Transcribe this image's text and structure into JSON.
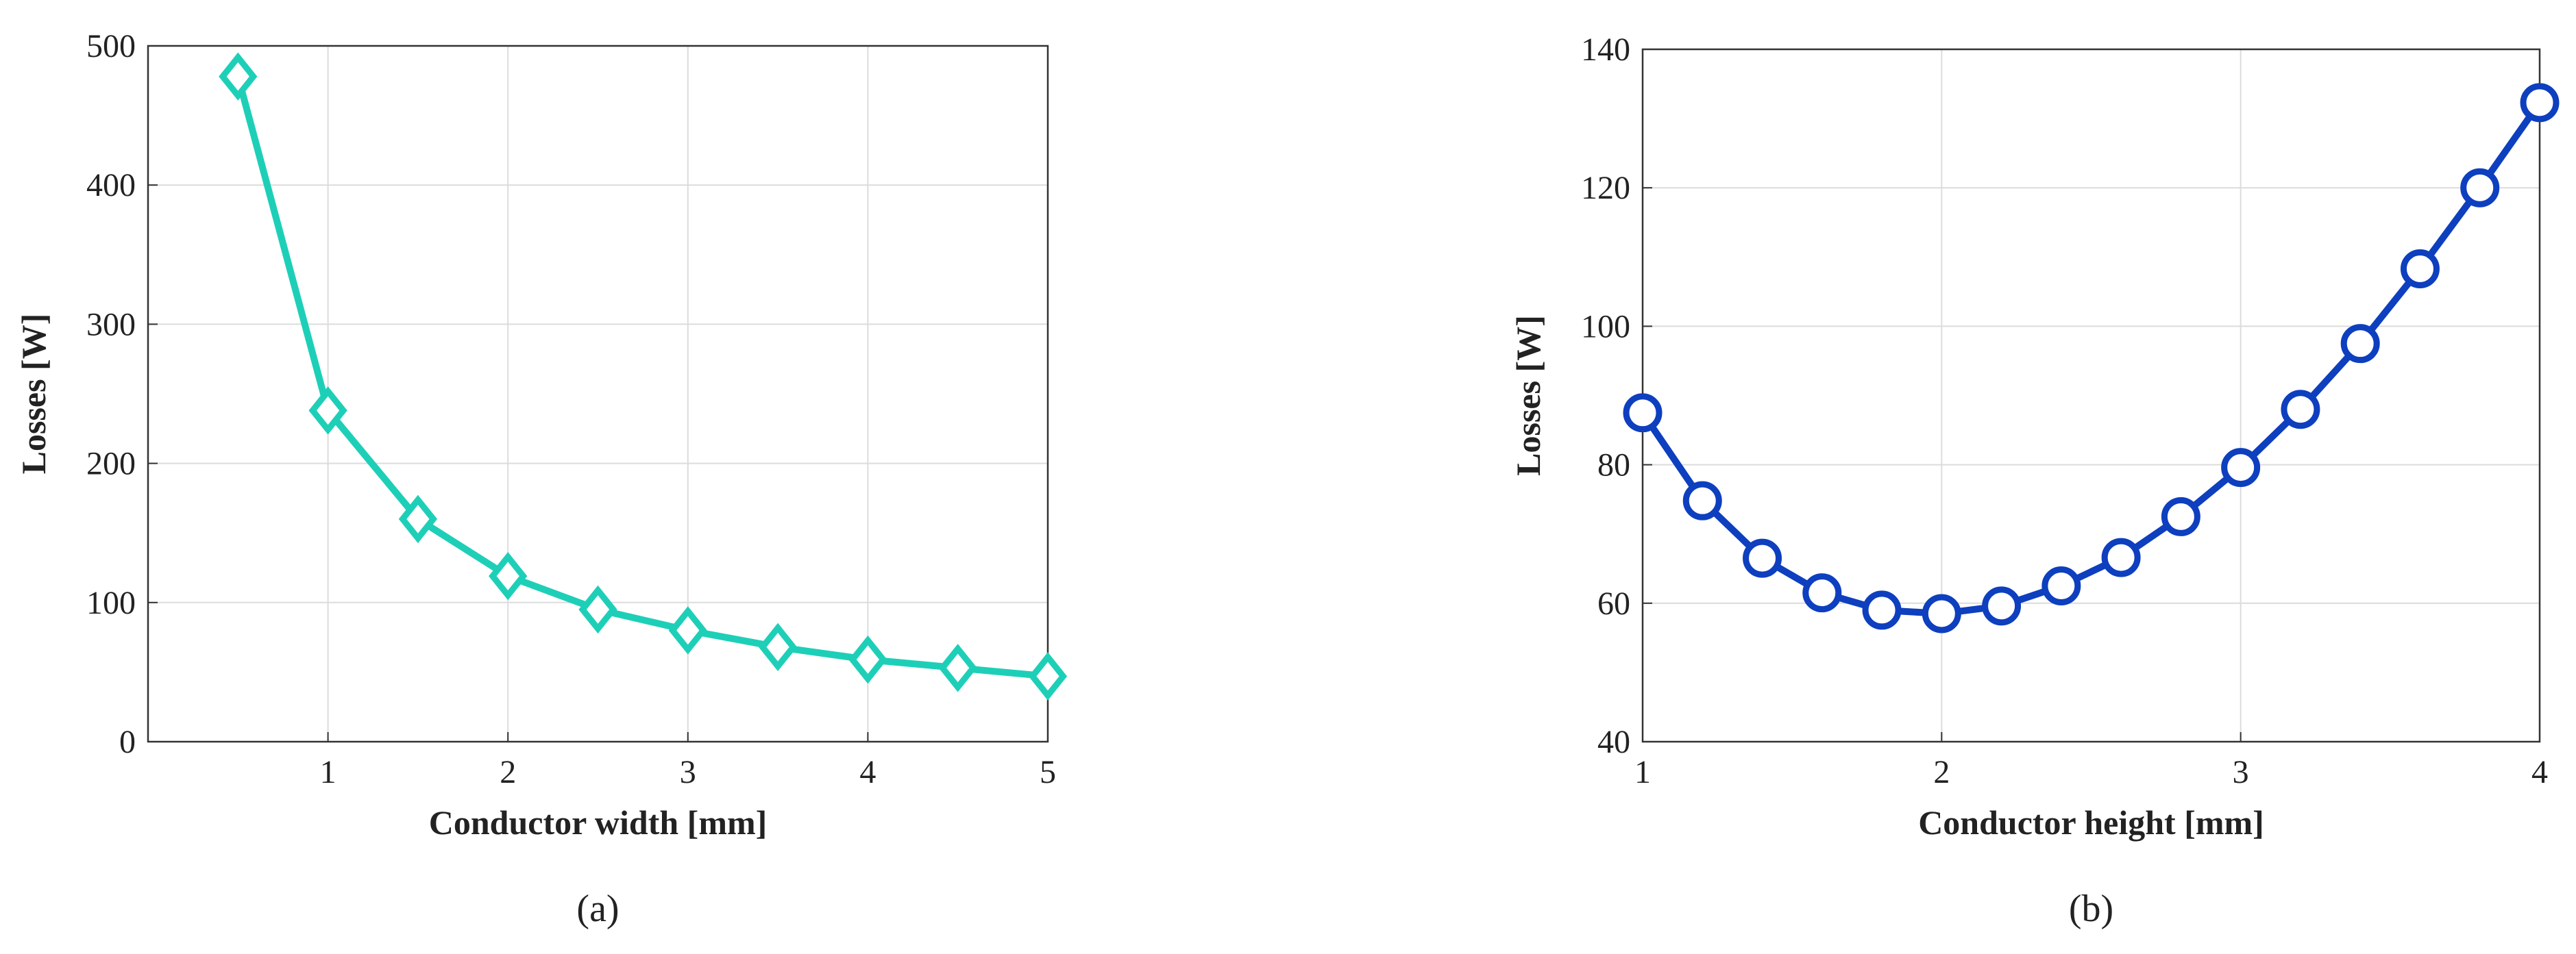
{
  "chart_data": [
    {
      "type": "line",
      "marker": "diamond",
      "color": "#1ecfb8",
      "x_label": "Conductor width [mm]",
      "y_label": "Losses [W]",
      "caption": "(a)",
      "x": [
        0.5,
        1,
        1.5,
        2,
        2.5,
        3,
        3.5,
        4,
        4.5,
        5
      ],
      "values": [
        478,
        238,
        160,
        119,
        95,
        80,
        68,
        59,
        53,
        47
      ],
      "xlim": [
        0,
        5
      ],
      "xticks": [
        1,
        2,
        3,
        4,
        5
      ],
      "ylim": [
        0,
        500
      ],
      "yticks": [
        0,
        100,
        200,
        300,
        400,
        500
      ],
      "grid": true
    },
    {
      "type": "line",
      "marker": "circle",
      "color": "#0d3fbf",
      "x_label": "Conductor height [mm]",
      "y_label": "Losses [W]",
      "caption": "(b)",
      "x": [
        1,
        1.2,
        1.4,
        1.6,
        1.8,
        2,
        2.2,
        2.4,
        2.6,
        2.8,
        3,
        3.2,
        3.4,
        3.6,
        3.8,
        4
      ],
      "values": [
        87.5,
        74.8,
        66.5,
        61.5,
        59,
        58.5,
        59.6,
        62.5,
        66.6,
        72.5,
        79.6,
        88,
        97.5,
        108.3,
        120,
        132.3
      ],
      "xlim": [
        1,
        4
      ],
      "xticks": [
        1,
        2,
        3,
        4
      ],
      "ylim": [
        40,
        140
      ],
      "yticks": [
        40,
        60,
        80,
        100,
        120,
        140
      ],
      "grid": true
    }
  ]
}
